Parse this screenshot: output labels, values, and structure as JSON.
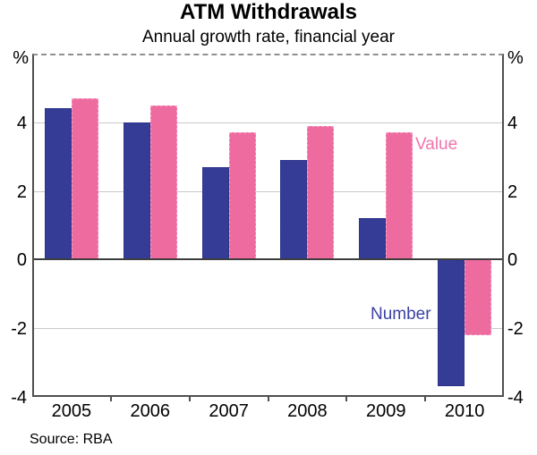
{
  "header": {
    "title": "ATM Withdrawals",
    "subtitle": "Annual growth rate, financial year"
  },
  "chart_data": {
    "type": "bar",
    "title": "ATM Withdrawals",
    "subtitle": "Annual growth rate, financial year",
    "categories": [
      "2005",
      "2006",
      "2007",
      "2008",
      "2009",
      "2010"
    ],
    "series": [
      {
        "name": "Number",
        "color": "#353c96",
        "label_color": "#3b42a3",
        "values": [
          4.4,
          4.0,
          2.7,
          2.9,
          1.2,
          -3.7
        ]
      },
      {
        "name": "Value",
        "color": "#ee6ba0",
        "label_color": "#f173ad",
        "values": [
          4.7,
          4.5,
          3.7,
          3.9,
          3.7,
          -2.2
        ]
      }
    ],
    "unit_left": "%",
    "unit_right": "%",
    "ylim": [
      -4,
      6
    ],
    "yticks": [
      {
        "value": 4,
        "label": "4"
      },
      {
        "value": 2,
        "label": "2"
      },
      {
        "value": 0,
        "label": "0"
      },
      {
        "value": -2,
        "label": "-2"
      },
      {
        "value": -4,
        "label": "-4"
      }
    ],
    "gridline_values": [
      4,
      2,
      -2
    ],
    "grid": true,
    "legend_position": "inline-annotations"
  },
  "footer": {
    "source": "Source: RBA"
  }
}
